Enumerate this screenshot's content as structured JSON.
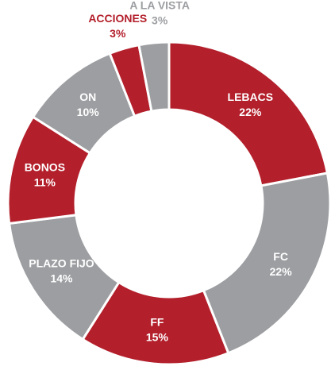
{
  "chart_data": {
    "type": "donut",
    "categories": [
      "LEBACS",
      "FC",
      "FF",
      "PLAZO FIJO",
      "BONOS",
      "ON",
      "ACCIONES",
      "A LA VISTA"
    ],
    "values": [
      22,
      22,
      15,
      14,
      11,
      10,
      3,
      3
    ],
    "value_labels": [
      "22%",
      "22%",
      "15%",
      "14%",
      "11%",
      "10%",
      "3%",
      "3%"
    ],
    "colors": [
      "#b31f2b",
      "#9c9ea1",
      "#b31f2b",
      "#9c9ea1",
      "#b31f2b",
      "#9c9ea1",
      "#b31f2b",
      "#9c9ea1"
    ]
  }
}
